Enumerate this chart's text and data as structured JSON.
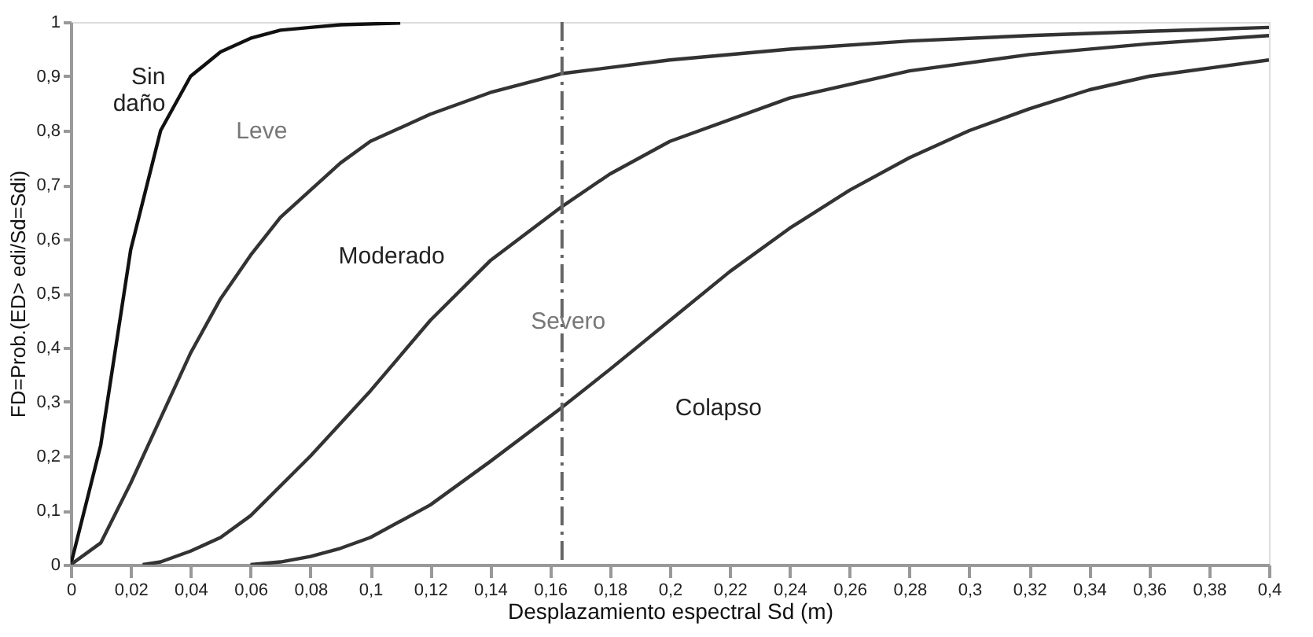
{
  "chart_data": {
    "type": "line",
    "xlabel": "Desplazamiento espectral Sd (m)",
    "ylabel": "FD=Prob.(ED> edi/Sd=Sdi)",
    "xlim": [
      0,
      0.4
    ],
    "ylim": [
      0,
      1
    ],
    "xticks": [
      0,
      {
        "value": 0.02,
        "label": "0,02"
      },
      {
        "value": 0.04,
        "label": "0,04"
      },
      {
        "value": 0.06,
        "label": "0,06"
      },
      {
        "value": 0.08,
        "label": "0,08"
      },
      {
        "value": 0.1,
        "label": "0,1"
      },
      {
        "value": 0.12,
        "label": "0,12"
      },
      {
        "value": 0.14,
        "label": "0,14"
      },
      {
        "value": 0.16,
        "label": "0,16"
      },
      {
        "value": 0.18,
        "label": "0,18"
      },
      {
        "value": 0.2,
        "label": "0,2"
      },
      {
        "value": 0.22,
        "label": "0,22"
      },
      {
        "value": 0.24,
        "label": "0,24"
      },
      {
        "value": 0.26,
        "label": "0,26"
      },
      {
        "value": 0.28,
        "label": "0,28"
      },
      {
        "value": 0.3,
        "label": "0,3"
      },
      {
        "value": 0.32,
        "label": "0,32"
      },
      {
        "value": 0.34,
        "label": "0,34"
      },
      {
        "value": 0.36,
        "label": "0,36"
      },
      {
        "value": 0.38,
        "label": "0,38"
      },
      {
        "value": 0.4,
        "label": "0,4"
      }
    ],
    "yticks": [
      0,
      {
        "value": 0.1,
        "label": "0,1"
      },
      {
        "value": 0.2,
        "label": "0,2"
      },
      {
        "value": 0.3,
        "label": "0,3"
      },
      {
        "value": 0.4,
        "label": "0,4"
      },
      {
        "value": 0.5,
        "label": "0,5"
      },
      {
        "value": 0.6,
        "label": "0,6"
      },
      {
        "value": 0.7,
        "label": "0,7"
      },
      {
        "value": 0.8,
        "label": "0,8"
      },
      {
        "value": 0.9,
        "label": "0,9"
      },
      1
    ],
    "marker": "none",
    "line_style": "solid",
    "series": [
      {
        "color": "#111111",
        "x": [
          0,
          0.01,
          0.02,
          0.03,
          0.04,
          0.05,
          0.06,
          0.07,
          0.08,
          0.09,
          0.11
        ],
        "values": [
          0,
          0.22,
          0.58,
          0.8,
          0.9,
          0.945,
          0.97,
          0.985,
          0.99,
          0.995,
          0.998
        ]
      },
      {
        "color": "#333333",
        "x": [
          0,
          0.01,
          0.02,
          0.03,
          0.04,
          0.05,
          0.06,
          0.07,
          0.08,
          0.09,
          0.1,
          0.12,
          0.14,
          0.164,
          0.2,
          0.24,
          0.28,
          0.32,
          0.36,
          0.4
        ],
        "values": [
          0,
          0.04,
          0.15,
          0.27,
          0.39,
          0.49,
          0.57,
          0.64,
          0.69,
          0.74,
          0.78,
          0.83,
          0.87,
          0.905,
          0.93,
          0.95,
          0.965,
          0.975,
          0.983,
          0.99
        ]
      },
      {
        "color": "#333333",
        "x": [
          0.024,
          0.03,
          0.04,
          0.05,
          0.06,
          0.08,
          0.1,
          0.12,
          0.14,
          0.164,
          0.18,
          0.2,
          0.24,
          0.28,
          0.32,
          0.36,
          0.4
        ],
        "values": [
          0,
          0.005,
          0.025,
          0.05,
          0.09,
          0.2,
          0.32,
          0.45,
          0.56,
          0.66,
          0.72,
          0.78,
          0.86,
          0.91,
          0.94,
          0.96,
          0.975
        ]
      },
      {
        "color": "#333333",
        "x": [
          0.06,
          0.07,
          0.08,
          0.09,
          0.1,
          0.12,
          0.14,
          0.164,
          0.18,
          0.2,
          0.22,
          0.24,
          0.26,
          0.28,
          0.3,
          0.32,
          0.34,
          0.36,
          0.38,
          0.4
        ],
        "values": [
          0,
          0.005,
          0.015,
          0.03,
          0.05,
          0.11,
          0.19,
          0.29,
          0.36,
          0.45,
          0.54,
          0.62,
          0.69,
          0.75,
          0.8,
          0.84,
          0.875,
          0.9,
          0.915,
          0.93
        ]
      }
    ],
    "ref_lines": [
      {
        "axis": "x",
        "value": 0.164,
        "color": "#666666",
        "line_style": "dashdot"
      }
    ],
    "annotations": [
      "Sin\ndaño",
      "Leve",
      "Moderado",
      "Severo",
      "Colapso"
    ]
  }
}
